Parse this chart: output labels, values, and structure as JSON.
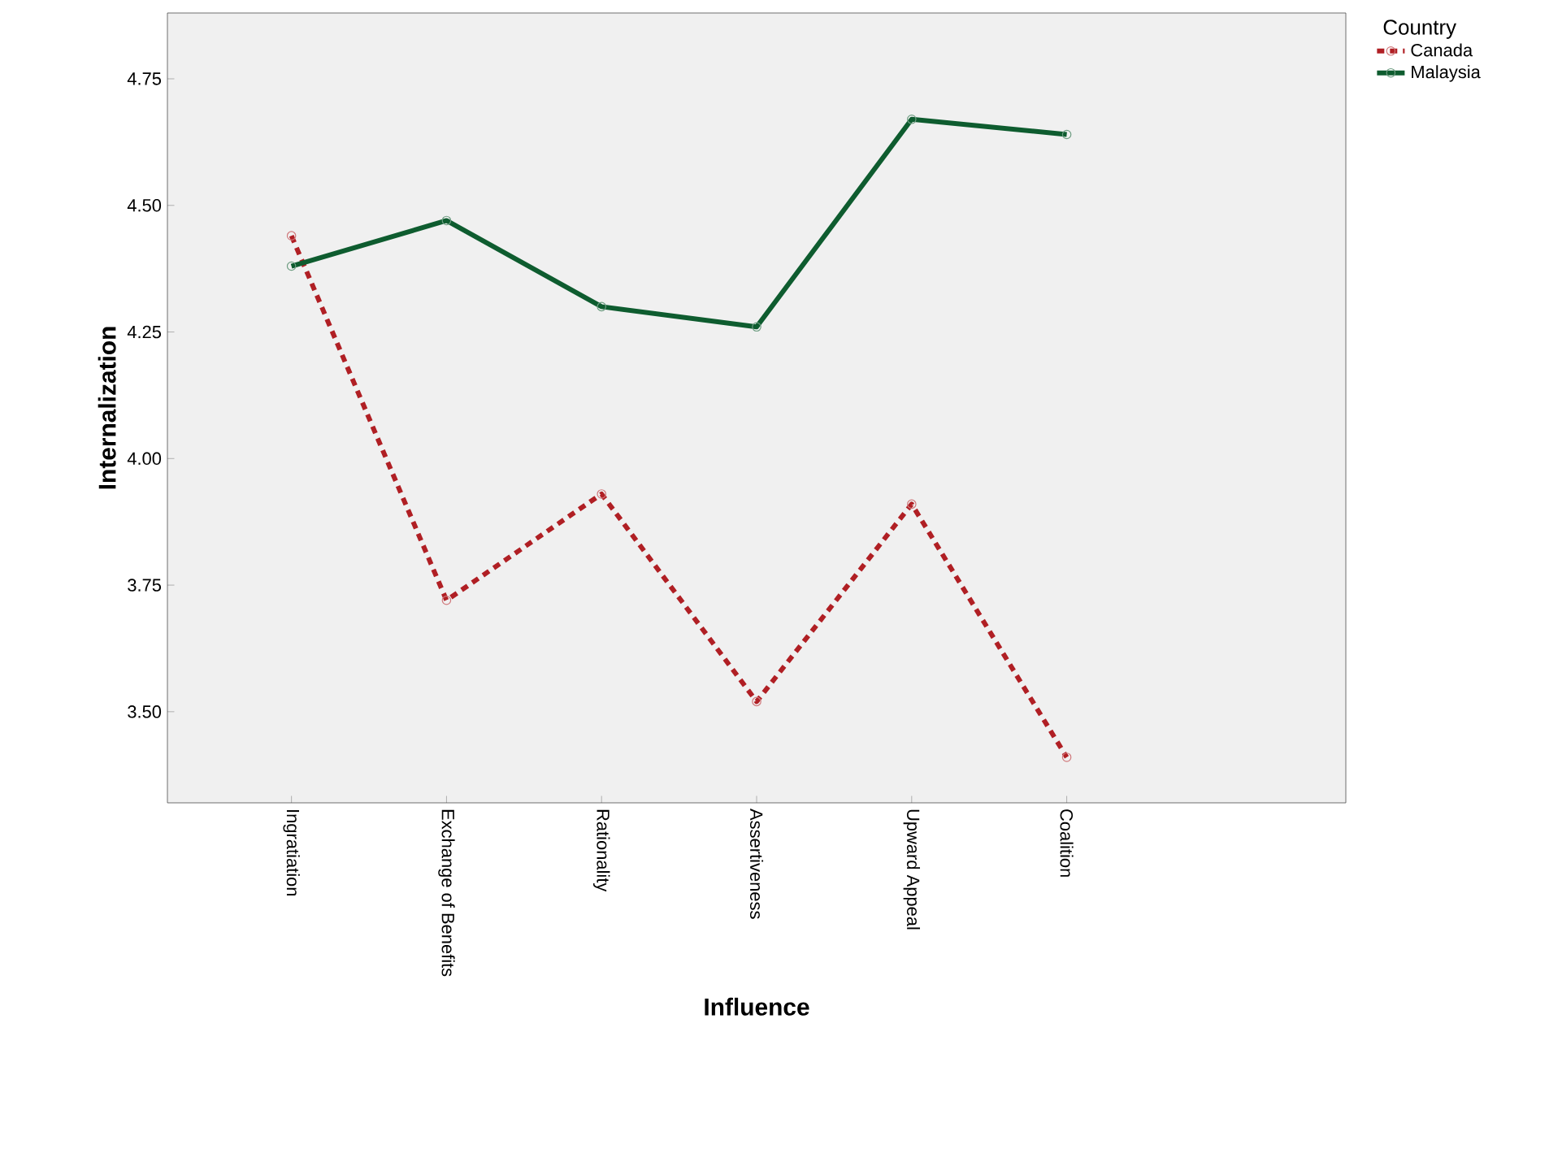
{
  "chart_data": {
    "type": "line",
    "xlabel": "Influence",
    "ylabel": "Internalization",
    "legend_title": "Country",
    "legend": "top right",
    "marker": "circle",
    "grid": false,
    "categories": [
      "Ingratiation",
      "Exchange of Benefits",
      "Rationality",
      "Assertiveness",
      "Upward Appeal",
      "Coalition"
    ],
    "ylim": [
      3.32,
      4.88
    ],
    "yticks": [
      {
        "value": 3.5,
        "label": "3.50"
      },
      {
        "value": 3.75,
        "label": "3.75"
      },
      {
        "value": 4.0,
        "label": "4.00"
      },
      {
        "value": 4.25,
        "label": "4.25"
      },
      {
        "value": 4.5,
        "label": "4.50"
      },
      {
        "value": 4.75,
        "label": "4.75"
      }
    ],
    "series": [
      {
        "name": "Canada",
        "color": "#b01f24",
        "line_style": "dotted",
        "values": [
          4.44,
          3.72,
          3.93,
          3.52,
          3.91,
          3.41
        ]
      },
      {
        "name": "Malaysia",
        "color": "#0e5c2f",
        "line_style": "solid",
        "values": [
          4.38,
          4.47,
          4.3,
          4.26,
          4.67,
          4.64
        ]
      }
    ]
  }
}
